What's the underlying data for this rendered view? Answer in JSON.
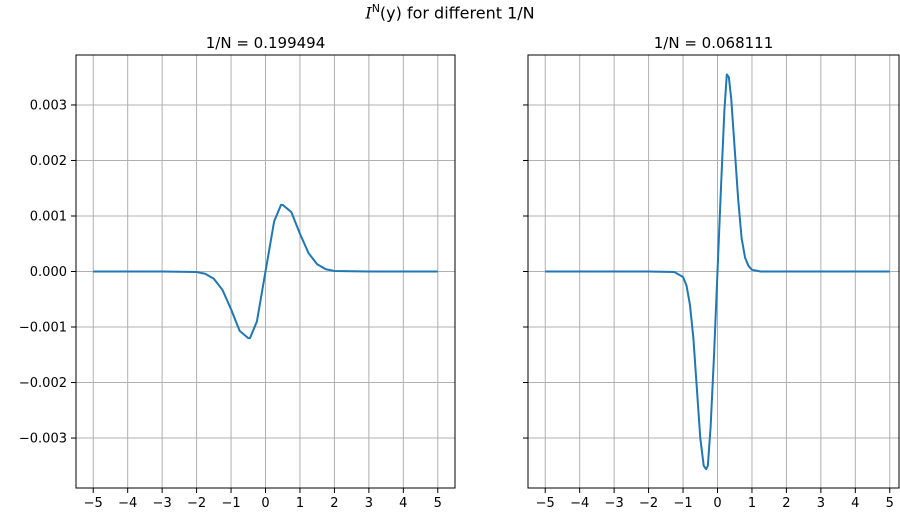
{
  "figure": {
    "title": "𝓘ᴺ(y) for different 1/N",
    "title_math": "I",
    "title_sup": "N",
    "title_rest": "(y) for different 1/N"
  },
  "chart_data": [
    {
      "type": "line",
      "title": "1/N = 0.199494",
      "xlabel": "",
      "ylabel": "",
      "xlim": [
        -5.5,
        5.5
      ],
      "ylim": [
        -0.0039,
        0.0039
      ],
      "xticks": [
        -5,
        -4,
        -3,
        -2,
        -1,
        0,
        1,
        2,
        3,
        4,
        5
      ],
      "yticks": [
        -0.003,
        -0.002,
        -0.001,
        0.0,
        0.001,
        0.002,
        0.003
      ],
      "ytick_labels": [
        "−0.003",
        "−0.002",
        "−0.001",
        "0.000",
        "0.001",
        "0.002",
        "0.003"
      ],
      "xtick_labels": [
        "−5",
        "−4",
        "−3",
        "−2",
        "−1",
        "0",
        "1",
        "2",
        "3",
        "4",
        "5"
      ],
      "grid": true,
      "sharey": true,
      "series": [
        {
          "color": "#1f77b4",
          "x": [
            -5,
            -3,
            -2,
            -1.75,
            -1.5,
            -1.25,
            -1,
            -0.75,
            -0.5,
            -0.45,
            -0.25,
            0,
            0.25,
            0.45,
            0.5,
            0.75,
            1,
            1.25,
            1.5,
            1.75,
            2,
            3,
            5
          ],
          "y": [
            0,
            0,
            -1e-05,
            -4e-05,
            -0.00013,
            -0.00033,
            -0.00068,
            -0.00107,
            -0.0012,
            -0.0012,
            -0.0009,
            0,
            0.0009,
            0.0012,
            0.0012,
            0.00107,
            0.00068,
            0.00033,
            0.00013,
            4e-05,
            1e-05,
            0,
            0
          ]
        }
      ]
    },
    {
      "type": "line",
      "title": "1/N = 0.068111",
      "xlabel": "",
      "ylabel": "",
      "xlim": [
        -5.5,
        5.5
      ],
      "ylim": [
        -0.0039,
        0.0039
      ],
      "xticks": [
        -5,
        -4,
        -3,
        -2,
        -1,
        0,
        1,
        2,
        3,
        4,
        5
      ],
      "xtick_labels": [
        "−5",
        "−4",
        "−3",
        "−2",
        "−1",
        "0",
        "1",
        "2",
        "3",
        "4",
        "5"
      ],
      "grid": true,
      "sharey": true,
      "series": [
        {
          "color": "#1f77b4",
          "x": [
            -5,
            -2,
            -1.25,
            -1,
            -0.9,
            -0.8,
            -0.7,
            -0.6,
            -0.5,
            -0.4,
            -0.33,
            -0.28,
            -0.2,
            -0.1,
            0,
            0.1,
            0.2,
            0.27,
            0.33,
            0.4,
            0.5,
            0.6,
            0.7,
            0.8,
            0.9,
            1,
            1.25,
            2,
            5
          ],
          "y": [
            0,
            0,
            -1e-05,
            -0.0001,
            -0.00025,
            -0.0006,
            -0.0012,
            -0.0021,
            -0.003,
            -0.0035,
            -0.00356,
            -0.0035,
            -0.0028,
            -0.0015,
            0,
            0.0015,
            0.0029,
            0.00355,
            0.0035,
            0.0031,
            0.0022,
            0.0013,
            0.0006,
            0.00025,
            0.0001,
            3e-05,
            0,
            0,
            0
          ]
        }
      ]
    }
  ]
}
